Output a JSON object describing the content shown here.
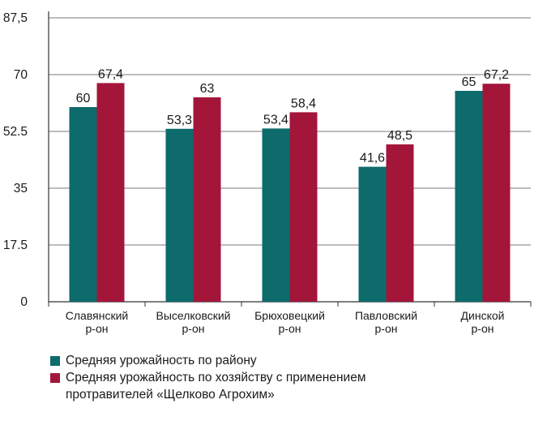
{
  "chart_data": {
    "type": "bar",
    "categories": [
      "Славянский\nр-он",
      "Выселковский\nр-он",
      "Брюховецкий\nр-он",
      "Павловский\nр-он",
      "Динской\nр-он"
    ],
    "series": [
      {
        "name": "Средняя урожайность по району",
        "color": "#0d6b6b",
        "values": [
          60,
          53.3,
          53.4,
          41.6,
          65
        ],
        "labels": [
          "60",
          "53,3",
          "53,4",
          "41,6",
          "65"
        ]
      },
      {
        "name": "Средняя урожайность по хозяйству с применением\nпротравителей «Щелково Агрохим»",
        "color": "#a4153a",
        "values": [
          67.4,
          63,
          58.4,
          48.5,
          67.2
        ],
        "labels": [
          "67,4",
          "63",
          "58,4",
          "48,5",
          "67,2"
        ]
      }
    ],
    "yticks": [
      0,
      17.5,
      35,
      52.5,
      70,
      87.5
    ],
    "ytick_labels": [
      "0",
      "17.5",
      "35",
      "52.5",
      "70",
      "87,5"
    ],
    "ylim": [
      0,
      87.5
    ],
    "grid": true,
    "legend_position": "bottom"
  }
}
